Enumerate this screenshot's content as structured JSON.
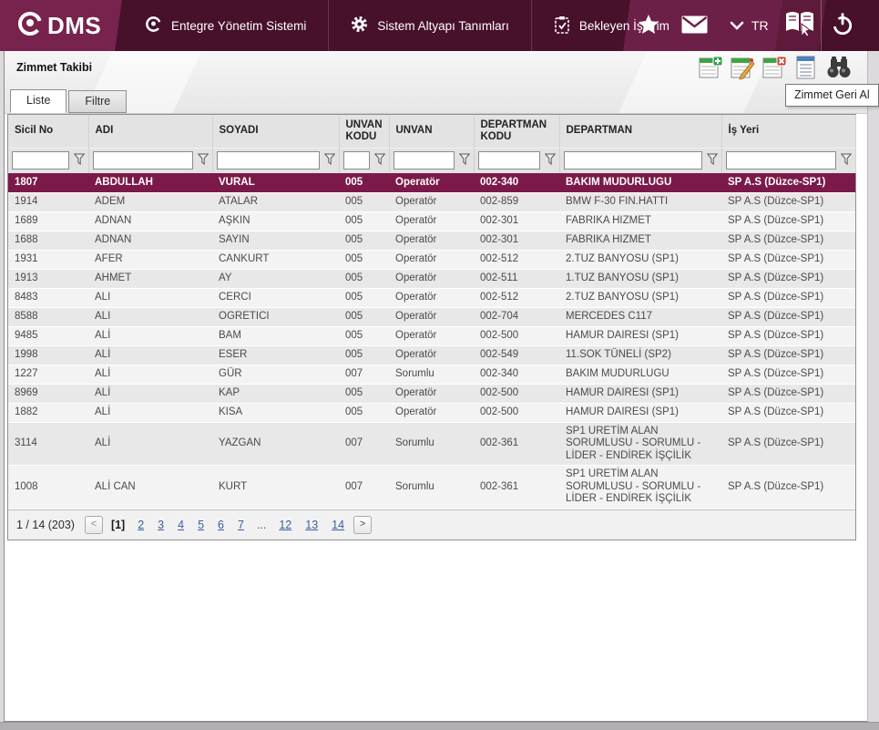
{
  "topbar": {
    "logo": "DMS",
    "nav_items": [
      {
        "label": "Entegre Yönetim Sistemi",
        "icon": "qdms-circle-icon"
      },
      {
        "label": "Sistem Altyapı Tanımları",
        "icon": "gear-icon"
      },
      {
        "label": "Bekleyen İşlerim",
        "icon": "clipboard-check-icon"
      }
    ],
    "quick_icons": [
      "star-icon",
      "mail-icon",
      "chevron-down-icon"
    ],
    "language": "TR",
    "right_icons": [
      "help-book-icon",
      "power-icon"
    ],
    "colors": {
      "dark": "#47102B",
      "logo_band": "#77234E",
      "quick_band": "#6D2047",
      "book_band": "#5E1A3B"
    }
  },
  "page": {
    "title": "Zimmet Takibi"
  },
  "toolbar": {
    "buttons": [
      {
        "name": "add",
        "icon": "grid-add-icon"
      },
      {
        "name": "edit",
        "icon": "grid-edit-icon"
      },
      {
        "name": "delete",
        "icon": "grid-delete-icon"
      },
      {
        "name": "zimmet-geri-al",
        "icon": "list-icon"
      },
      {
        "name": "search",
        "icon": "binoculars-icon"
      }
    ],
    "tooltip": "Zimmet Geri Al"
  },
  "tabs": [
    {
      "label": "Liste",
      "active": true
    },
    {
      "label": "Filtre",
      "active": false
    }
  ],
  "table": {
    "columns": [
      {
        "label": "Sicil No"
      },
      {
        "label": "ADI"
      },
      {
        "label": "SOYADI"
      },
      {
        "label": "UNVAN KODU"
      },
      {
        "label": "UNVAN"
      },
      {
        "label": "DEPARTMAN KODU"
      },
      {
        "label": "DEPARTMAN"
      },
      {
        "label": "İş Yeri"
      }
    ],
    "selected_row_index": 0,
    "rows": [
      [
        "1807",
        "ABDULLAH",
        "VURAL",
        "005",
        "Operatör",
        "002-340",
        "BAKIM MUDURLUGU",
        "SP A.S (Düzce-SP1)"
      ],
      [
        "1914",
        "ADEM",
        "ATALAR",
        "005",
        "Operatör",
        "002-859",
        "BMW F-30 FIN.HATTI",
        "SP A.S (Düzce-SP1)"
      ],
      [
        "1689",
        "ADNAN",
        "AŞKIN",
        "005",
        "Operatör",
        "002-301",
        "FABRIKA HIZMET",
        "SP A.S (Düzce-SP1)"
      ],
      [
        "1688",
        "ADNAN",
        "SAYIN",
        "005",
        "Operatör",
        "002-301",
        "FABRIKA HIZMET",
        "SP A.S (Düzce-SP1)"
      ],
      [
        "1931",
        "AFER",
        "CANKURT",
        "005",
        "Operatör",
        "002-512",
        "2.TUZ BANYOSU (SP1)",
        "SP A.S (Düzce-SP1)"
      ],
      [
        "1913",
        "AHMET",
        "AY",
        "005",
        "Operatör",
        "002-511",
        "1.TUZ BANYOSU (SP1)",
        "SP A.S (Düzce-SP1)"
      ],
      [
        "8483",
        "ALI",
        "CERCI",
        "005",
        "Operatör",
        "002-512",
        "2.TUZ BANYOSU (SP1)",
        "SP A.S (Düzce-SP1)"
      ],
      [
        "8588",
        "ALI",
        "OGRETICI",
        "005",
        "Operatör",
        "002-704",
        "MERCEDES C117",
        "SP A.S (Düzce-SP1)"
      ],
      [
        "9485",
        "ALİ",
        "BAM",
        "005",
        "Operatör",
        "002-500",
        "HAMUR DAIRESI (SP1)",
        "SP A.S (Düzce-SP1)"
      ],
      [
        "1998",
        "ALİ",
        "ESER",
        "005",
        "Operatör",
        "002-549",
        "11.SOK TÜNELİ (SP2)",
        "SP A.S (Düzce-SP1)"
      ],
      [
        "1227",
        "ALİ",
        "GÜR",
        "007",
        "Sorumlu",
        "002-340",
        "BAKIM MUDURLUGU",
        "SP A.S (Düzce-SP1)"
      ],
      [
        "8969",
        "ALİ",
        "KAP",
        "005",
        "Operatör",
        "002-500",
        "HAMUR DAIRESI (SP1)",
        "SP A.S (Düzce-SP1)"
      ],
      [
        "1882",
        "ALİ",
        "KISA",
        "005",
        "Operatör",
        "002-500",
        "HAMUR DAIRESI (SP1)",
        "SP A.S (Düzce-SP1)"
      ],
      [
        "3114",
        "ALİ",
        "YAZGAN",
        "007",
        "Sorumlu",
        "002-361",
        "SP1 URETİM ALAN SORUMLUSU - SORUMLU - LİDER - ENDİREK İŞÇİLİK",
        "SP A.S (Düzce-SP1)"
      ],
      [
        "1008",
        "ALİ CAN",
        "KURT",
        "007",
        "Sorumlu",
        "002-361",
        "SP1 URETİM ALAN SORUMLUSU - SORUMLU - LİDER - ENDİREK İŞÇİLİK",
        "SP A.S (Düzce-SP1)"
      ]
    ]
  },
  "pagination": {
    "summary": "1 / 14 (203)",
    "prev": "<",
    "next": ">",
    "pages": [
      "[1]",
      "2",
      "3",
      "4",
      "5",
      "6",
      "7",
      "...",
      "12",
      "13",
      "14"
    ],
    "current_page": "1"
  }
}
